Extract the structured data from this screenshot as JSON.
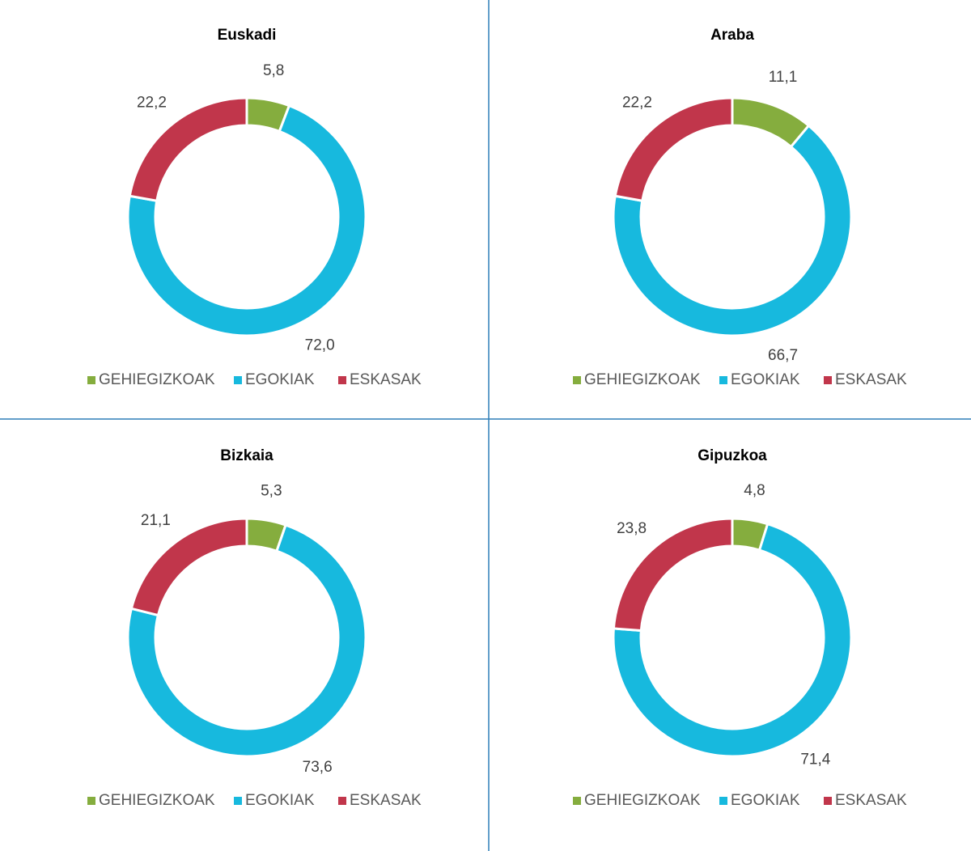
{
  "chart_data": [
    {
      "type": "pie",
      "title": "Euskadi",
      "categories": [
        "GEHIEGIZKOAK",
        "EGOKIAK",
        "ESKASAK"
      ],
      "values": [
        5.8,
        72.0,
        22.2
      ],
      "value_labels": [
        "5,8",
        "72,0",
        "22,2"
      ],
      "colors": [
        "#85ad3e",
        "#17b9de",
        "#c1364b"
      ]
    },
    {
      "type": "pie",
      "title": "Araba",
      "categories": [
        "GEHIEGIZKOAK",
        "EGOKIAK",
        "ESKASAK"
      ],
      "values": [
        11.1,
        66.7,
        22.2
      ],
      "value_labels": [
        "11,1",
        "66,7",
        "22,2"
      ],
      "colors": [
        "#85ad3e",
        "#17b9de",
        "#c1364b"
      ]
    },
    {
      "type": "pie",
      "title": "Bizkaia",
      "categories": [
        "GEHIEGIZKOAK",
        "EGOKIAK",
        "ESKASAK"
      ],
      "values": [
        5.3,
        73.6,
        21.1
      ],
      "value_labels": [
        "5,3",
        "73,6",
        "21,1"
      ],
      "colors": [
        "#85ad3e",
        "#17b9de",
        "#c1364b"
      ]
    },
    {
      "type": "pie",
      "title": "Gipuzkoa",
      "categories": [
        "GEHIEGIZKOAK",
        "EGOKIAK",
        "ESKASAK"
      ],
      "values": [
        4.8,
        71.4,
        23.8
      ],
      "value_labels": [
        "4,8",
        "71,4",
        "23,8"
      ],
      "colors": [
        "#85ad3e",
        "#17b9de",
        "#c1364b"
      ]
    }
  ]
}
